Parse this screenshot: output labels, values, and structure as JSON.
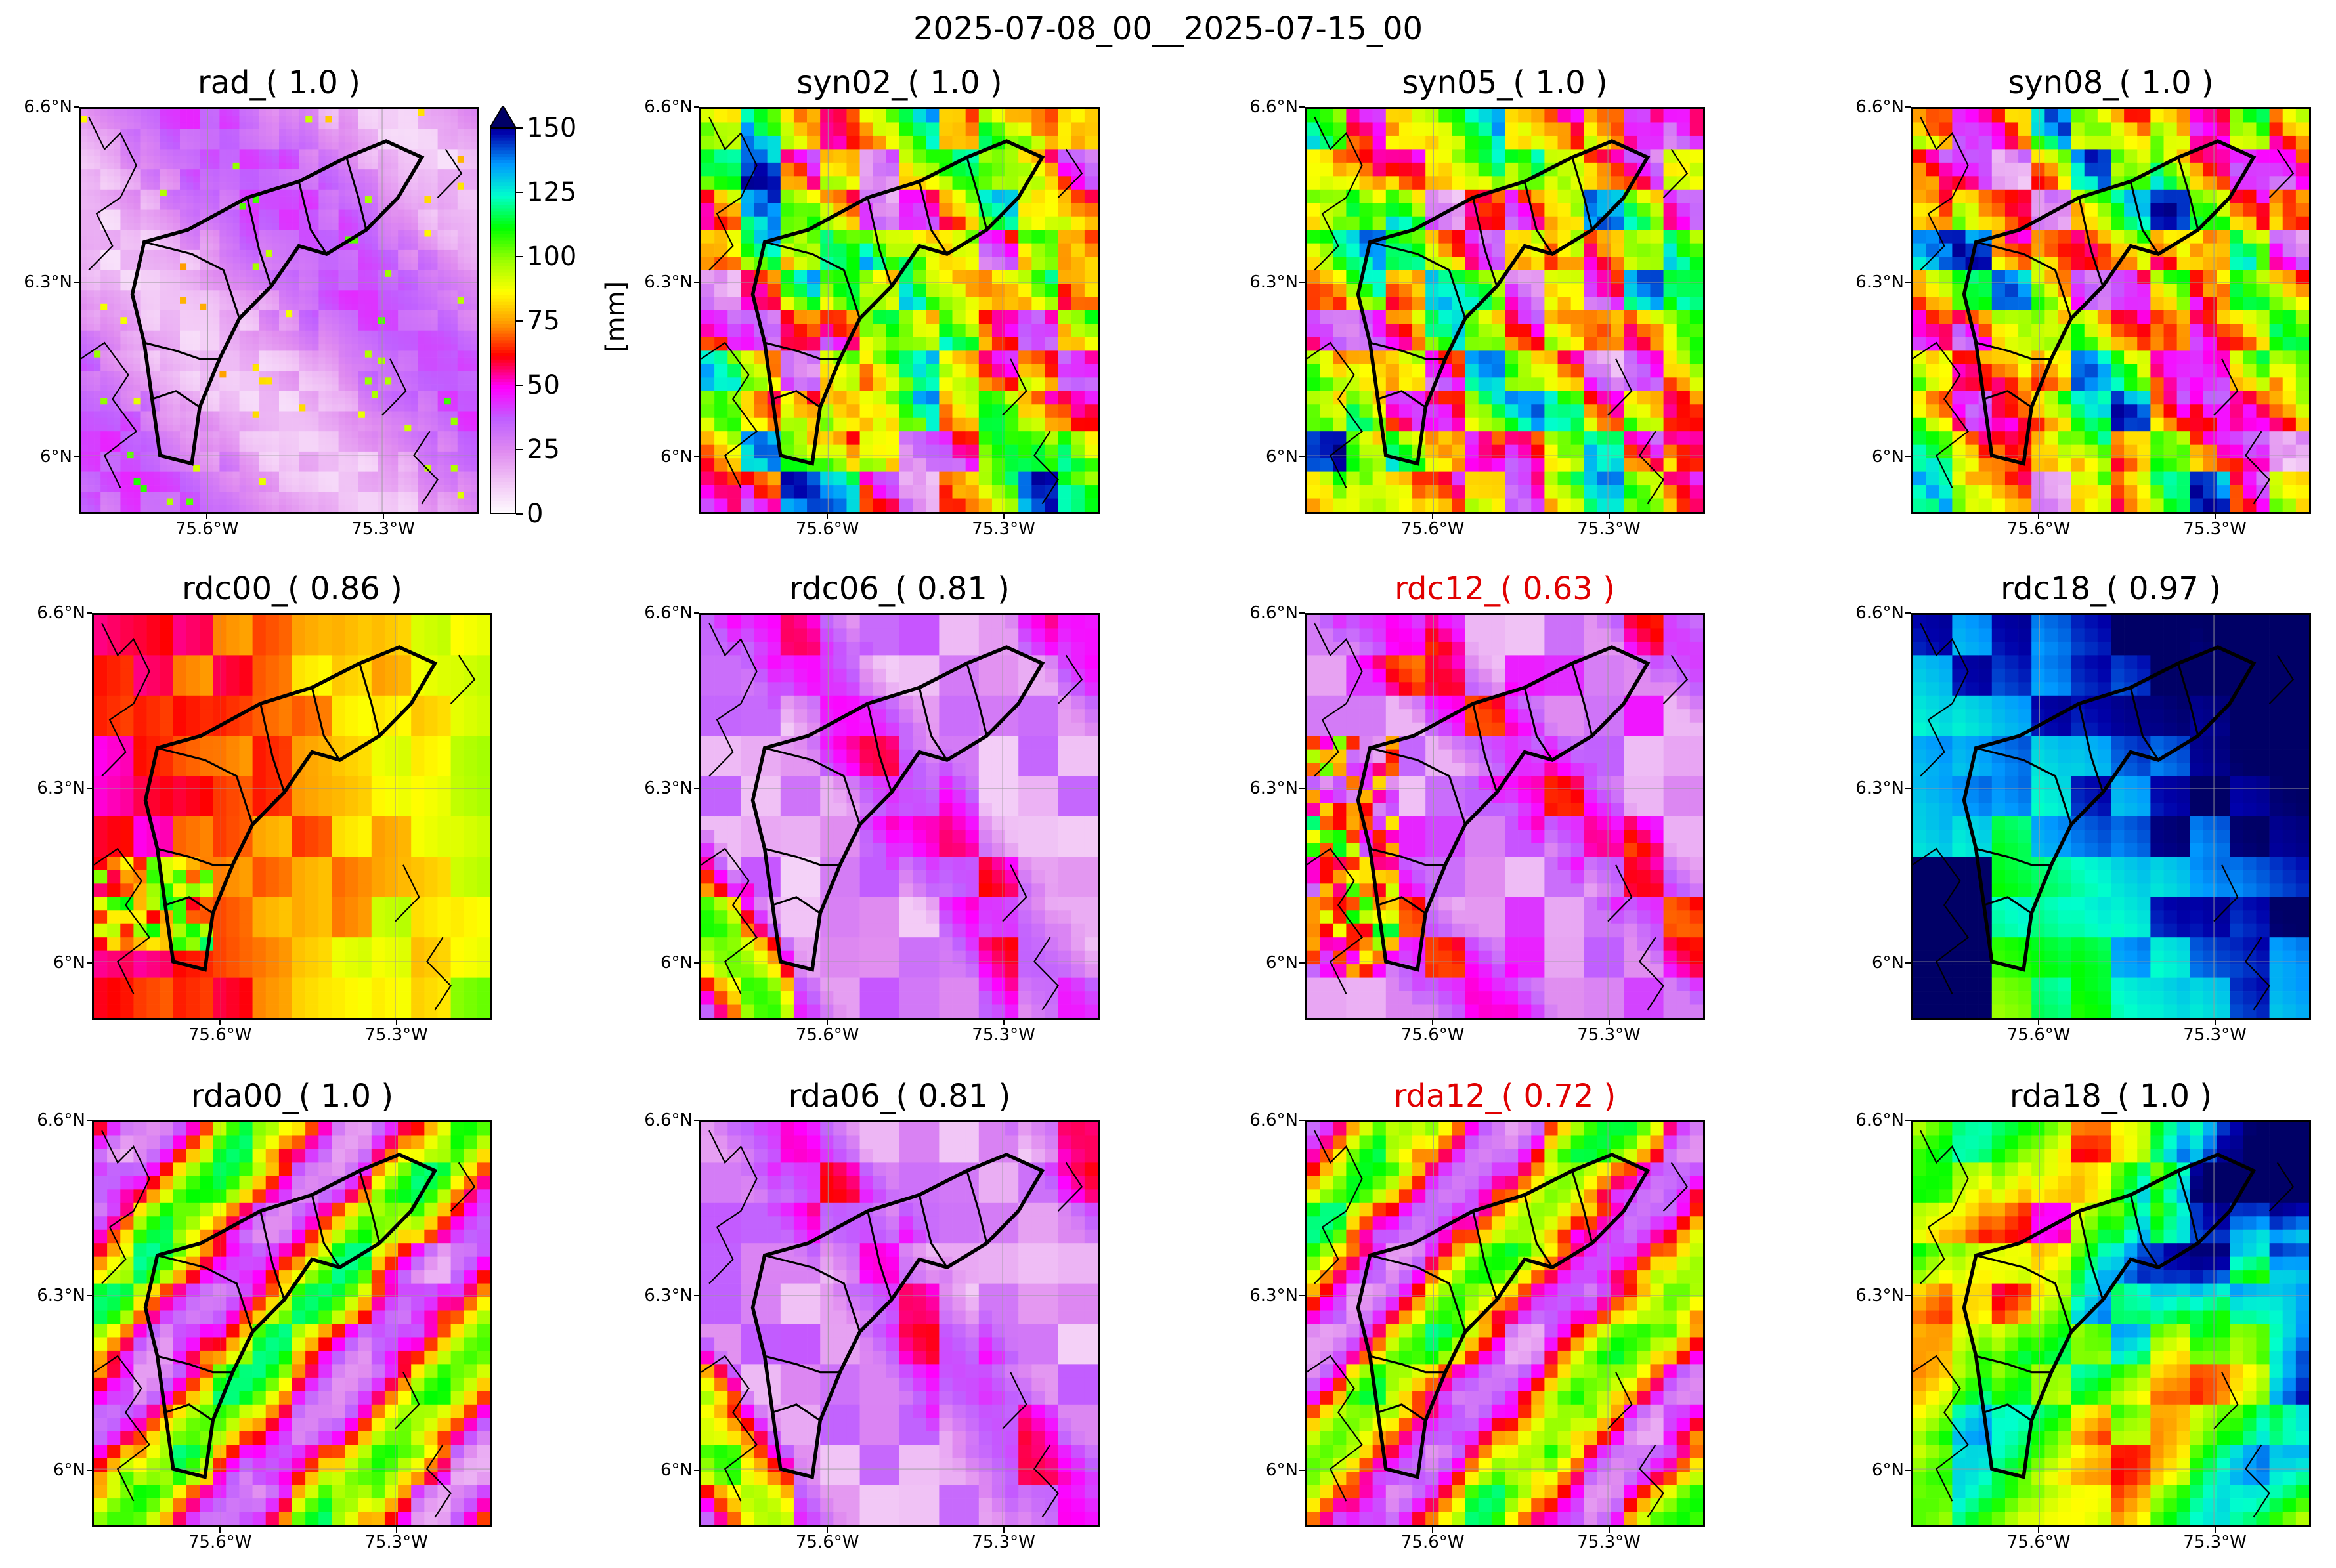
{
  "suptitle": "2025-07-08_00__2025-07-15_00",
  "panels": [
    {
      "id": "rad",
      "title": "rad_( 1.0 )",
      "title_color": "#000000",
      "style": "lowpink"
    },
    {
      "id": "syn02",
      "title": "syn02_( 1.0 )",
      "title_color": "#000000",
      "style": "mixed"
    },
    {
      "id": "syn05",
      "title": "syn05_( 1.0 )",
      "title_color": "#000000",
      "style": "mixed"
    },
    {
      "id": "syn08",
      "title": "syn08_( 1.0 )",
      "title_color": "#000000",
      "style": "mixed"
    },
    {
      "id": "rdc00",
      "title": "rdc00_( 0.86 )",
      "title_color": "#000000",
      "style": "purple_red"
    },
    {
      "id": "rdc06",
      "title": "rdc06_( 0.81 )",
      "title_color": "#000000",
      "style": "light"
    },
    {
      "id": "rdc12",
      "title": "rdc12_( 0.63 )",
      "title_color": "#e00000",
      "style": "light2"
    },
    {
      "id": "rdc18",
      "title": "rdc18_( 0.97 )",
      "title_color": "#000000",
      "style": "high"
    },
    {
      "id": "rda00",
      "title": "rda00_( 1.0 )",
      "title_color": "#000000",
      "style": "bands"
    },
    {
      "id": "rda06",
      "title": "rda06_( 0.81 )",
      "title_color": "#000000",
      "style": "light"
    },
    {
      "id": "rda12",
      "title": "rda12_( 0.72 )",
      "title_color": "#e00000",
      "style": "bands"
    },
    {
      "id": "rda18",
      "title": "rda18_( 1.0 )",
      "title_color": "#000000",
      "style": "high2"
    }
  ],
  "axes": {
    "y_ticks": [
      "6.6°N",
      "6.3°N",
      "6°N"
    ],
    "x_ticks": [
      "75.6°W",
      "75.3°W"
    ]
  },
  "colorbar": {
    "unit": "[mm]",
    "ticks": [
      "150",
      "125",
      "100",
      "75",
      "50",
      "25",
      "0"
    ],
    "max_value": 150,
    "extend": "max",
    "colors": [
      "#ffffff",
      "#f2c8f6",
      "#e08cf0",
      "#c060ff",
      "#ff00ff",
      "#ff0000",
      "#ff9900",
      "#ffff00",
      "#99ff00",
      "#00ff00",
      "#00ffcc",
      "#0099ff",
      "#0000aa",
      "#000066"
    ]
  }
}
